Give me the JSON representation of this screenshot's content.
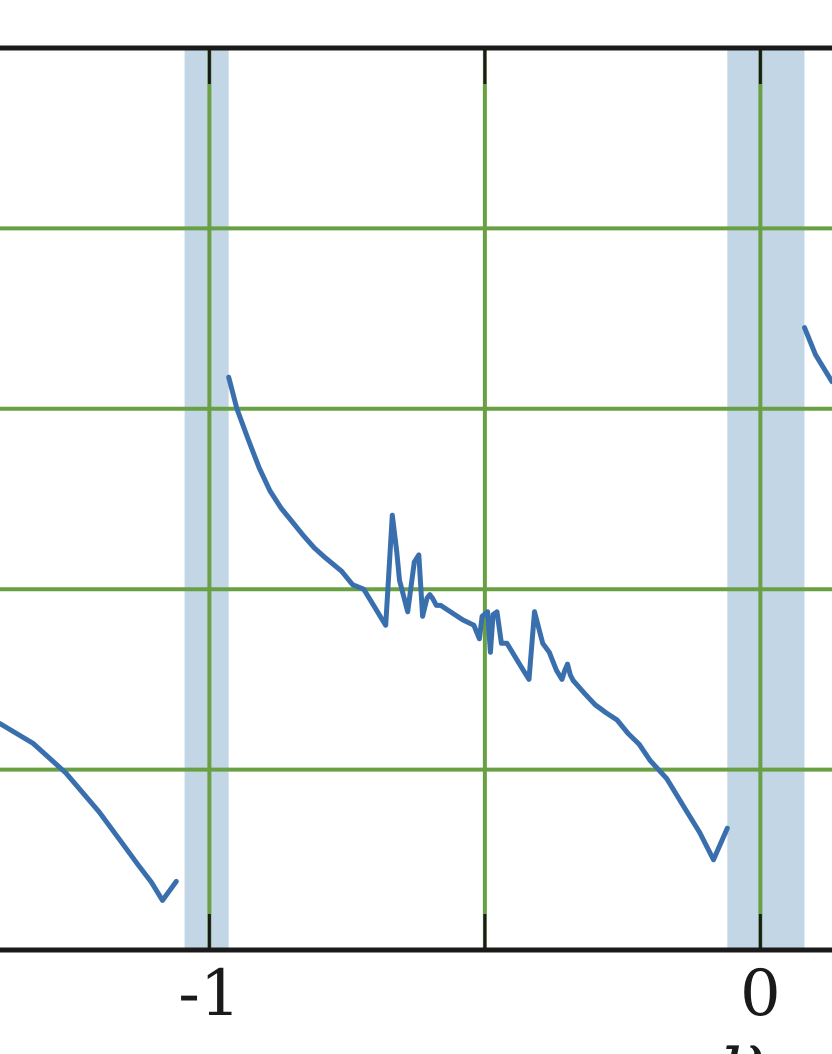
{
  "chart_data": {
    "type": "line",
    "title": "",
    "xlabel": "ν",
    "ylabel": "",
    "xlim": [
      -1.38,
      0.13
    ],
    "ylim": [
      0,
      1
    ],
    "grid": true,
    "legend": "none",
    "x_ticks": [
      {
        "value": -1,
        "label": "-1"
      },
      {
        "value": -0.5,
        "label": ""
      },
      {
        "value": 0,
        "label": "0"
      }
    ],
    "y_grid": [
      0.2,
      0.4,
      0.6,
      0.8
    ],
    "shaded_bands": [
      {
        "x0": -1.045,
        "x1": -0.965
      },
      {
        "x0": -0.06,
        "x1": 0.08
      }
    ],
    "series": [
      {
        "name": "",
        "segments": [
          {
            "x": [
              -1.38,
              -1.32,
              -1.26,
              -1.2,
              -1.16,
              -1.13,
              -1.105,
              -1.085,
              -1.06
            ],
            "y": [
              0.251,
              0.229,
              0.196,
              0.153,
              0.12,
              0.095,
              0.075,
              0.055,
              0.076
            ]
          },
          {
            "x": [
              -0.965,
              -0.95,
              -0.93,
              -0.91,
              -0.89,
              -0.87,
              -0.85,
              -0.83,
              -0.81,
              -0.79,
              -0.76,
              -0.74,
              -0.72,
              -0.7,
              -0.69,
              -0.68,
              -0.668,
              -0.66,
              -0.655,
              -0.64,
              -0.628,
              -0.62,
              -0.613,
              -0.605,
              -0.6,
              -0.595,
              -0.588,
              -0.58,
              -0.56,
              -0.54,
              -0.52,
              -0.51,
              -0.505,
              -0.495,
              -0.49,
              -0.485,
              -0.478,
              -0.47,
              -0.46,
              -0.45,
              -0.44,
              -0.43,
              -0.42,
              -0.41,
              -0.395,
              -0.383,
              -0.37,
              -0.36,
              -0.355,
              -0.35,
              -0.345,
              -0.34,
              -0.32,
              -0.3,
              -0.28,
              -0.26,
              -0.24,
              -0.22,
              -0.2,
              -0.17,
              -0.14,
              -0.11,
              -0.085,
              -0.06
            ],
            "y": [
              0.635,
              0.6,
              0.567,
              0.535,
              0.509,
              0.49,
              0.475,
              0.46,
              0.446,
              0.435,
              0.42,
              0.405,
              0.4,
              0.38,
              0.37,
              0.36,
              0.482,
              0.442,
              0.41,
              0.375,
              0.43,
              0.438,
              0.37,
              0.39,
              0.394,
              0.39,
              0.382,
              0.382,
              0.374,
              0.366,
              0.36,
              0.345,
              0.37,
              0.375,
              0.33,
              0.372,
              0.375,
              0.34,
              0.34,
              0.33,
              0.32,
              0.31,
              0.3,
              0.375,
              0.34,
              0.33,
              0.31,
              0.3,
              0.31,
              0.317,
              0.305,
              0.299,
              0.285,
              0.272,
              0.263,
              0.255,
              0.24,
              0.228,
              0.21,
              0.19,
              0.16,
              0.13,
              0.1,
              0.135
            ]
          },
          {
            "x": [
              0.08,
              0.1,
              0.12,
              0.13
            ],
            "y": [
              0.69,
              0.66,
              0.64,
              0.63
            ]
          }
        ],
        "color": "#3a6fad"
      }
    ],
    "colors": {
      "line": "#3a6fad",
      "band": "#c2d6e6",
      "grid": "#68a043",
      "frame": "#1a1a1a"
    }
  }
}
